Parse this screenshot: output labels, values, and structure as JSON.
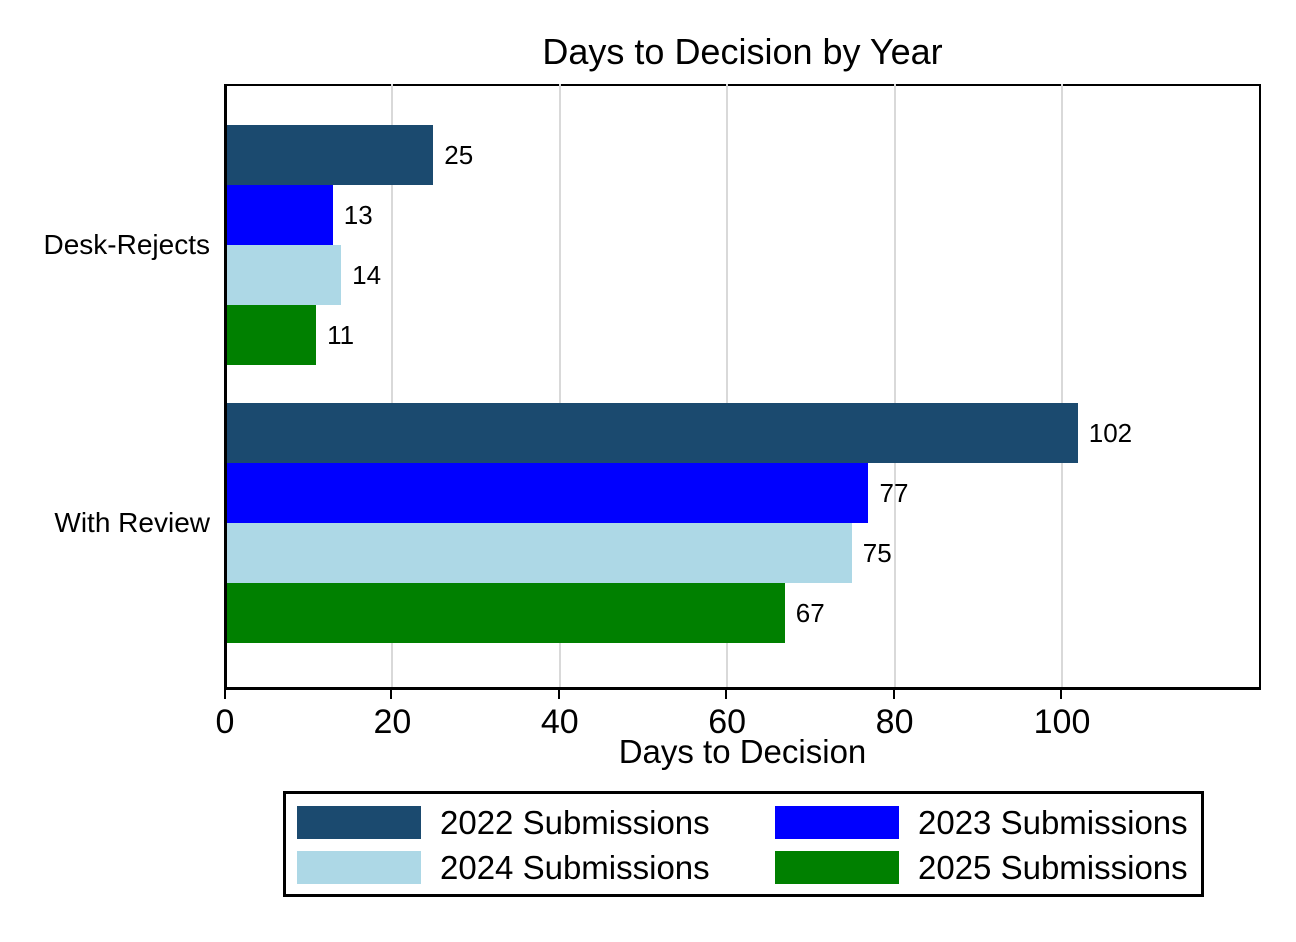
{
  "chart_data": {
    "type": "bar",
    "orientation": "horizontal",
    "title": "Days to Decision by Year",
    "xlabel": "Days to Decision",
    "categories": [
      "Desk-Rejects",
      "With Review"
    ],
    "series": [
      {
        "name": "2022 Submissions",
        "color": "#1b4a6f",
        "values": [
          25,
          102
        ]
      },
      {
        "name": "2023 Submissions",
        "color": "#0000ff",
        "values": [
          13,
          77
        ]
      },
      {
        "name": "2024 Submissions",
        "color": "#add8e6",
        "values": [
          14,
          75
        ]
      },
      {
        "name": "2025 Submissions",
        "color": "#008000",
        "values": [
          11,
          67
        ]
      }
    ],
    "x_ticks": [
      0,
      20,
      40,
      60,
      80,
      100
    ],
    "xlim": [
      0,
      124
    ],
    "grid": "vertical-gridlines-at-ticks",
    "gridline_color": "#d9d9d9",
    "frame_color": "#000000",
    "background": "#ffffff",
    "value_labels": true,
    "legend_position": "bottom-boxed"
  }
}
